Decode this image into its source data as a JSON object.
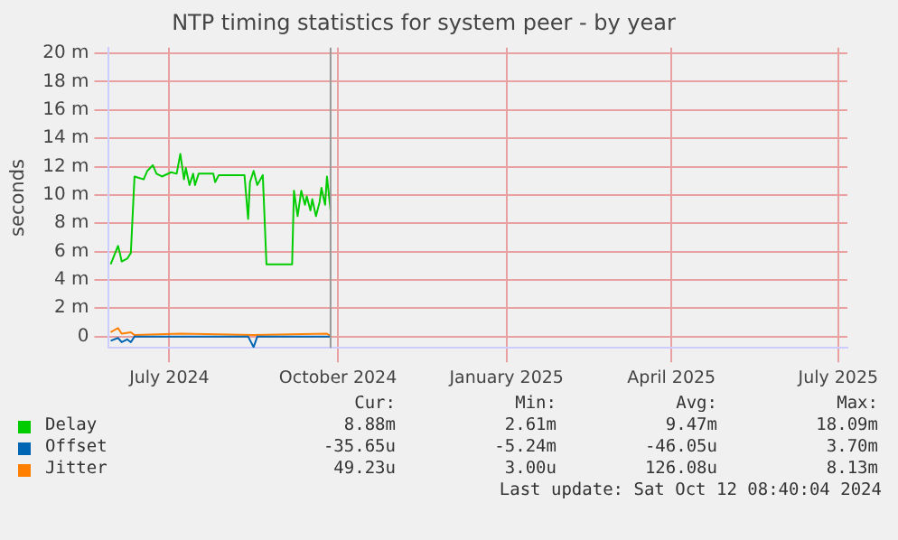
{
  "chart_data": {
    "type": "line",
    "title": "NTP timing statistics for system peer - by year",
    "ylabel": "seconds",
    "xlim": [
      "2024-05-29",
      "2025-07-06"
    ],
    "xticks": [
      {
        "value": "2024-07-01",
        "label": "July 2024"
      },
      {
        "value": "2024-10-01",
        "label": "October 2024"
      },
      {
        "value": "2025-01-01",
        "label": "January 2025"
      },
      {
        "value": "2025-04-01",
        "label": "April 2025"
      },
      {
        "value": "2025-07-01",
        "label": "July 2025"
      }
    ],
    "ylim": [
      -0.8,
      20.4
    ],
    "yticks": [
      0,
      {
        "value": 2,
        "label": "2 m"
      },
      {
        "value": 4,
        "label": "4 m"
      },
      {
        "value": 6,
        "label": "6 m"
      },
      {
        "value": 8,
        "label": "8 m"
      },
      {
        "value": 10,
        "label": "10 m"
      },
      {
        "value": 12,
        "label": "12 m"
      },
      {
        "value": 14,
        "label": "14 m"
      },
      {
        "value": 16,
        "label": "16 m"
      },
      {
        "value": 18,
        "label": "18 m"
      },
      {
        "value": 20,
        "label": "20 m"
      }
    ],
    "grid": true,
    "legend": "bottom",
    "marker": "none",
    "line_style": "solid",
    "ref_lines": [
      {
        "axis": "x",
        "value": "2024-09-27",
        "color": "#999999"
      }
    ],
    "series": [
      {
        "name": "Delay",
        "color": "#00cc00",
        "x": [
          "2024-05-30",
          "2024-06-03",
          "2024-06-04",
          "2024-06-05",
          "2024-06-08",
          "2024-06-10",
          "2024-06-12",
          "2024-06-17",
          "2024-06-19",
          "2024-06-22",
          "2024-06-24",
          "2024-06-27",
          "2024-07-02",
          "2024-07-05",
          "2024-07-07",
          "2024-07-09",
          "2024-07-10",
          "2024-07-12",
          "2024-07-14",
          "2024-07-15",
          "2024-07-17",
          "2024-07-25",
          "2024-07-26",
          "2024-07-28",
          "2024-08-11",
          "2024-08-13",
          "2024-08-14",
          "2024-08-16",
          "2024-08-18",
          "2024-08-21",
          "2024-08-23",
          "2024-09-06",
          "2024-09-07",
          "2024-09-09",
          "2024-09-11",
          "2024-09-13",
          "2024-09-14",
          "2024-09-16",
          "2024-09-17",
          "2024-09-19",
          "2024-09-21",
          "2024-09-22",
          "2024-09-24",
          "2024-09-25",
          "2024-09-27"
        ],
        "values": [
          5.1,
          6.4,
          5.9,
          5.3,
          5.5,
          5.9,
          11.3,
          11.1,
          11.7,
          12.1,
          11.5,
          11.3,
          11.6,
          11.5,
          12.9,
          11.1,
          11.9,
          10.7,
          11.5,
          10.7,
          11.5,
          11.5,
          10.9,
          11.4,
          11.4,
          8.3,
          10.9,
          11.7,
          10.7,
          11.4,
          5.1,
          5.1,
          10.3,
          8.5,
          10.3,
          9.3,
          9.9,
          8.9,
          9.7,
          8.5,
          9.5,
          10.5,
          9.3,
          11.3,
          8.9
        ]
      },
      {
        "name": "Offset",
        "color": "#0066b3",
        "x": [
          "2024-05-30",
          "2024-06-03",
          "2024-06-05",
          "2024-06-08",
          "2024-06-10",
          "2024-06-12",
          "2024-07-15",
          "2024-08-13",
          "2024-08-16",
          "2024-08-18",
          "2024-09-27"
        ],
        "values": [
          -0.3,
          -0.1,
          -0.4,
          -0.2,
          -0.4,
          0,
          0,
          0,
          -0.75,
          0,
          0
        ]
      },
      {
        "name": "Jitter",
        "color": "#ff8000",
        "x": [
          "2024-05-30",
          "2024-06-03",
          "2024-06-05",
          "2024-06-10",
          "2024-06-12",
          "2024-07-07",
          "2024-08-16",
          "2024-09-25",
          "2024-09-27"
        ],
        "values": [
          0.3,
          0.6,
          0.2,
          0.3,
          0.1,
          0.2,
          0.1,
          0.2,
          0.05
        ]
      }
    ],
    "annotations": [
      "Cur:",
      "Min:",
      "Avg:",
      "Max:",
      "8.88m",
      "2.61m",
      "9.47m",
      "18.09m",
      "-35.65u",
      "-5.24m",
      "-46.05u",
      "3.70m",
      "49.23u",
      "3.00u",
      "126.08u",
      "8.13m",
      "Last update:  Sat Oct 12 08:40:04 2024"
    ]
  }
}
